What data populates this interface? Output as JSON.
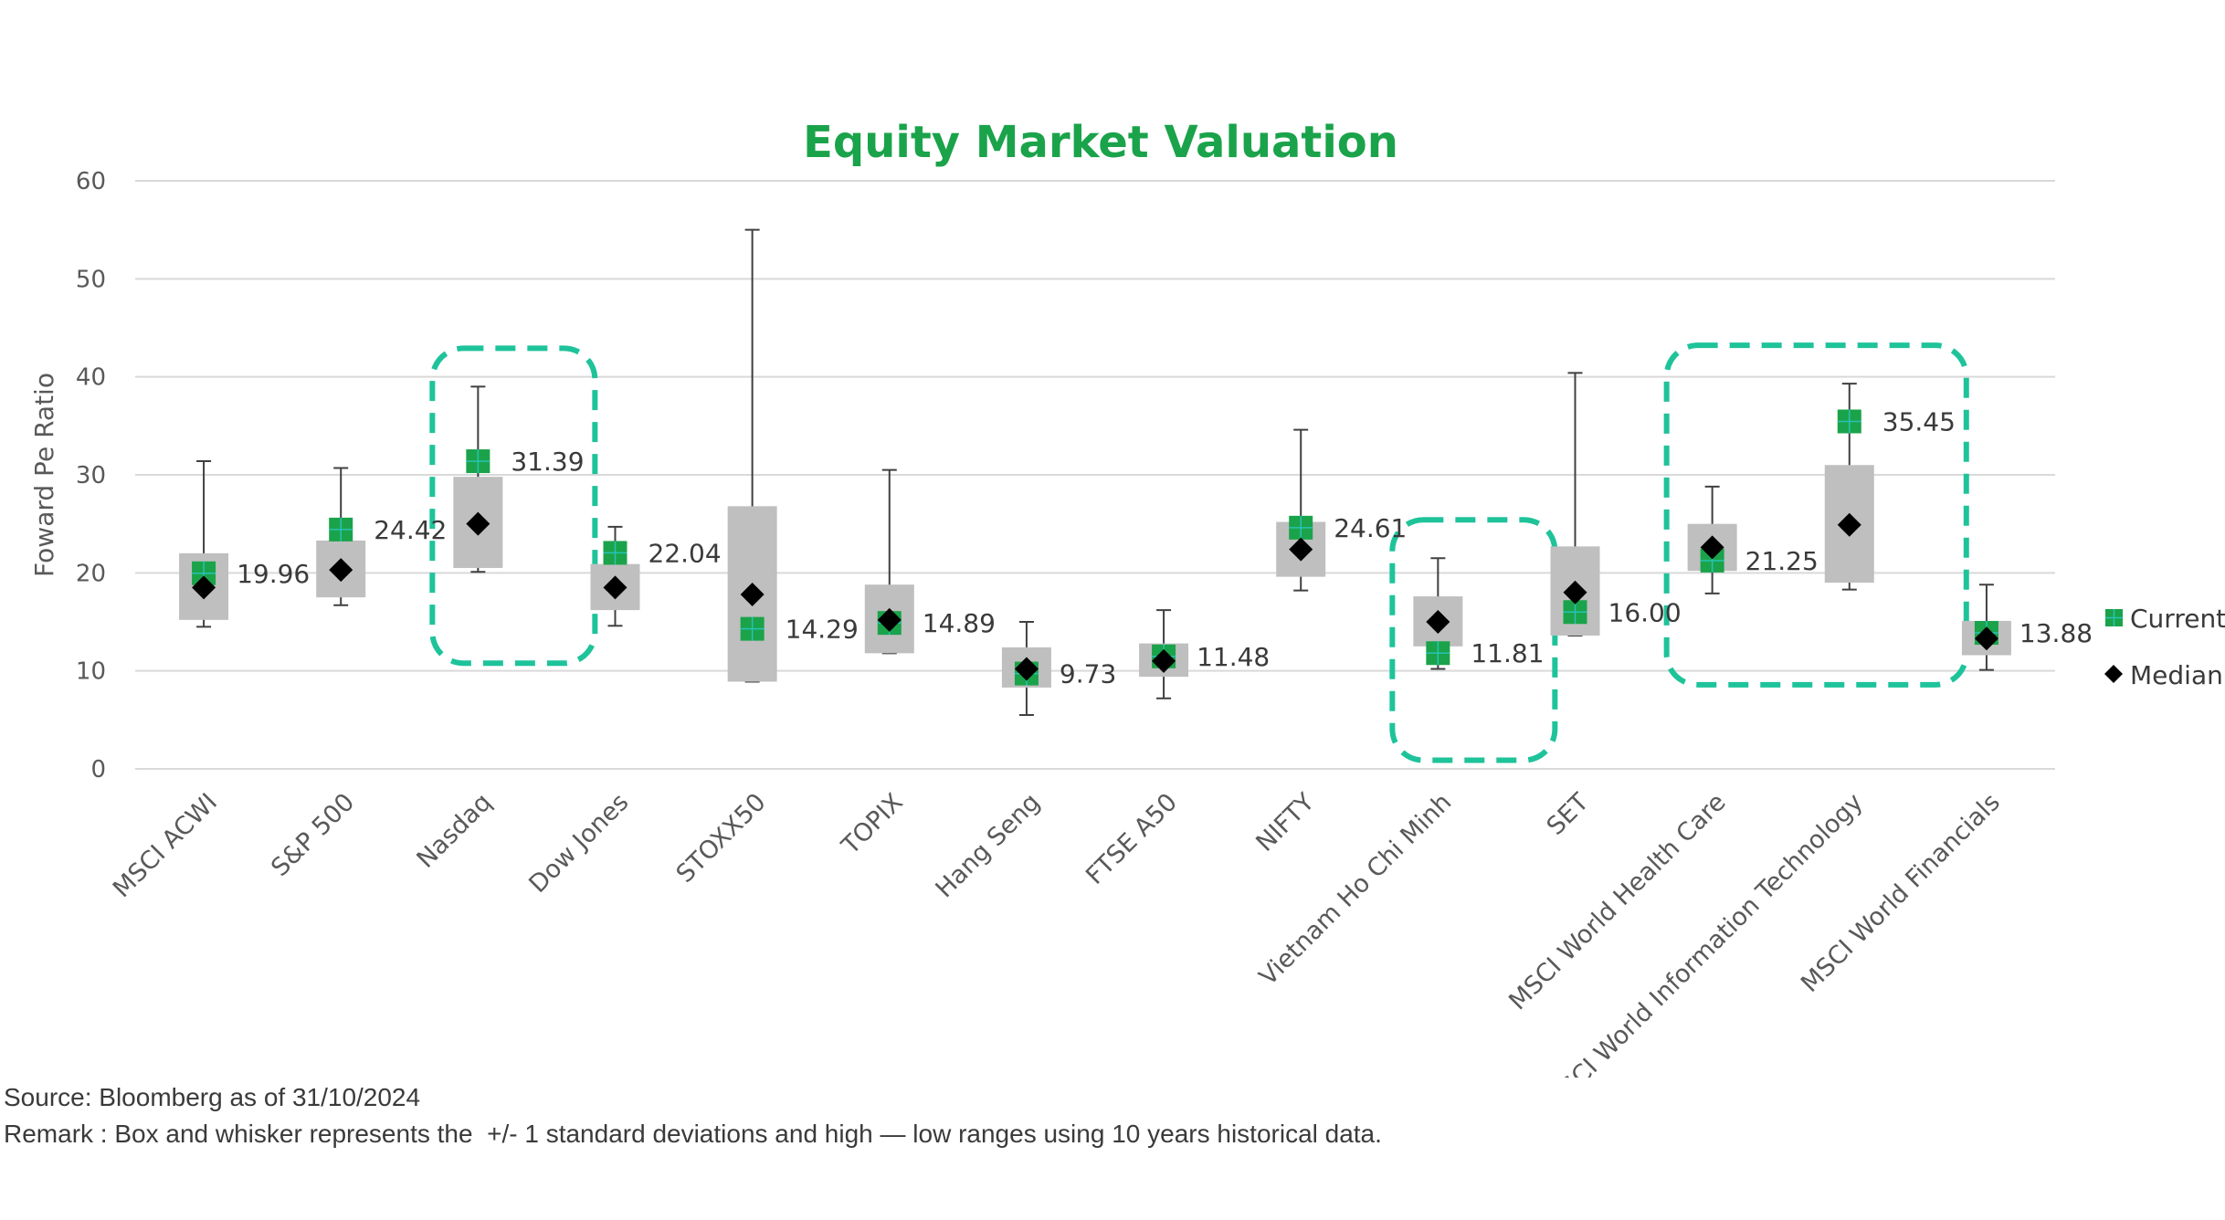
{
  "chart_data": {
    "type": "box",
    "title": "Equity Market Valuation",
    "ylabel": "Foward Pe Ratio",
    "xlabel": "",
    "ylim": [
      0,
      60
    ],
    "yticks": [
      "0",
      "10",
      "20",
      "30",
      "40",
      "50",
      "60"
    ],
    "grid": "horizontal",
    "legend_position": "right",
    "legend": [
      {
        "name": "Current",
        "color": "#1aa34a"
      },
      {
        "name": "Median",
        "color": "#000000"
      }
    ],
    "categories": [
      {
        "name": "MSCI ACWI",
        "low": 14.5,
        "q1": 15.2,
        "median": 18.5,
        "q3": 22.0,
        "high": 31.4,
        "current": 19.96,
        "label": "19.96",
        "highlight": false
      },
      {
        "name": "S&P 500",
        "low": 16.7,
        "q1": 17.5,
        "median": 20.3,
        "q3": 23.3,
        "high": 30.7,
        "current": 24.42,
        "label": "24.42",
        "highlight": false
      },
      {
        "name": "Nasdaq",
        "low": 20.1,
        "q1": 20.5,
        "median": 25.0,
        "q3": 29.8,
        "high": 39.0,
        "current": 31.39,
        "label": "31.39",
        "highlight": true
      },
      {
        "name": "Dow Jones",
        "low": 14.6,
        "q1": 16.2,
        "median": 18.5,
        "q3": 20.9,
        "high": 24.7,
        "current": 22.04,
        "label": "22.04",
        "highlight": false
      },
      {
        "name": "STOXX50",
        "low": 8.9,
        "q1": 8.9,
        "median": 17.8,
        "q3": 26.8,
        "high": 55.0,
        "current": 14.29,
        "label": "14.29",
        "highlight": false
      },
      {
        "name": "TOPIX",
        "low": 11.8,
        "q1": 11.8,
        "median": 15.2,
        "q3": 18.8,
        "high": 30.5,
        "current": 14.89,
        "label": "14.89",
        "highlight": false
      },
      {
        "name": "Hang Seng",
        "low": 5.5,
        "q1": 8.3,
        "median": 10.2,
        "q3": 12.4,
        "high": 15.0,
        "current": 9.73,
        "label": "9.73",
        "highlight": false
      },
      {
        "name": "FTSE A50",
        "low": 7.2,
        "q1": 9.4,
        "median": 11.0,
        "q3": 12.8,
        "high": 16.2,
        "current": 11.48,
        "label": "11.48",
        "highlight": false
      },
      {
        "name": "NIFTY",
        "low": 18.2,
        "q1": 19.6,
        "median": 22.4,
        "q3": 25.2,
        "high": 34.6,
        "current": 24.61,
        "label": "24.61",
        "highlight": false
      },
      {
        "name": "Vietnam Ho Chi Minh",
        "low": 10.2,
        "q1": 12.5,
        "median": 15.0,
        "q3": 17.6,
        "high": 21.5,
        "current": 11.81,
        "label": "11.81",
        "highlight": true
      },
      {
        "name": "SET",
        "low": 13.6,
        "q1": 13.6,
        "median": 18.0,
        "q3": 22.7,
        "high": 40.4,
        "current": 16.0,
        "label": "16.00",
        "highlight": false
      },
      {
        "name": "MSCI World Health Care",
        "low": 17.9,
        "q1": 20.2,
        "median": 22.6,
        "q3": 25.0,
        "high": 28.8,
        "current": 21.25,
        "label": "21.25",
        "highlight": true
      },
      {
        "name": "MSCI World Information Technology",
        "low": 18.3,
        "q1": 19.0,
        "median": 24.9,
        "q3": 31.0,
        "high": 39.3,
        "current": 35.45,
        "label": "35.45",
        "highlight": true
      },
      {
        "name": "MSCI World Financials",
        "low": 10.1,
        "q1": 11.6,
        "median": 13.3,
        "q3": 15.1,
        "high": 18.8,
        "current": 13.88,
        "label": "13.88",
        "highlight": false
      }
    ],
    "highlight_groups": [
      [
        "Nasdaq"
      ],
      [
        "Vietnam Ho Chi Minh"
      ],
      [
        "MSCI World Health Care",
        "MSCI World Information Technology"
      ]
    ],
    "colors": {
      "box": "#bfbfbf",
      "whisker": "#404040",
      "grid": "#d9d9d9",
      "current": "#1aa34a",
      "median": "#000000",
      "highlight": "#1ec39a"
    }
  },
  "footnotes": {
    "source": "Source: Bloomberg as of 31/10/2024",
    "remark": "Remark : Box and whisker represents the  +/- 1 standard deviations and high — low ranges using 10 years historical data."
  }
}
